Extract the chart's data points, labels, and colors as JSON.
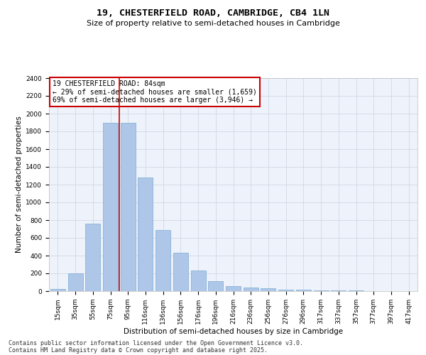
{
  "title": "19, CHESTERFIELD ROAD, CAMBRIDGE, CB4 1LN",
  "subtitle": "Size of property relative to semi-detached houses in Cambridge",
  "xlabel": "Distribution of semi-detached houses by size in Cambridge",
  "ylabel": "Number of semi-detached properties",
  "categories": [
    "15sqm",
    "35sqm",
    "55sqm",
    "75sqm",
    "95sqm",
    "116sqm",
    "136sqm",
    "156sqm",
    "176sqm",
    "196sqm",
    "216sqm",
    "236sqm",
    "256sqm",
    "276sqm",
    "296sqm",
    "317sqm",
    "337sqm",
    "357sqm",
    "377sqm",
    "397sqm",
    "417sqm"
  ],
  "values": [
    25,
    200,
    760,
    1900,
    1900,
    1280,
    690,
    430,
    230,
    110,
    60,
    40,
    30,
    20,
    15,
    12,
    8,
    5,
    3,
    2,
    1
  ],
  "bar_color": "#aec6e8",
  "bar_edge_color": "#7aadd4",
  "grid_color": "#d0d8e8",
  "background_color": "#eef2fa",
  "vline_x_idx": 3,
  "vline_color": "#cc0000",
  "annotation_line1": "19 CHESTERFIELD ROAD: 84sqm",
  "annotation_line2": "← 29% of semi-detached houses are smaller (1,659)",
  "annotation_line3": "69% of semi-detached houses are larger (3,946) →",
  "annotation_box_color": "#cc0000",
  "ylim": [
    0,
    2400
  ],
  "yticks": [
    0,
    200,
    400,
    600,
    800,
    1000,
    1200,
    1400,
    1600,
    1800,
    2000,
    2200,
    2400
  ],
  "footer_line1": "Contains HM Land Registry data © Crown copyright and database right 2025.",
  "footer_line2": "Contains public sector information licensed under the Open Government Licence v3.0.",
  "title_fontsize": 9.5,
  "subtitle_fontsize": 8,
  "axis_label_fontsize": 7.5,
  "tick_fontsize": 6.5,
  "annotation_fontsize": 7,
  "footer_fontsize": 6
}
